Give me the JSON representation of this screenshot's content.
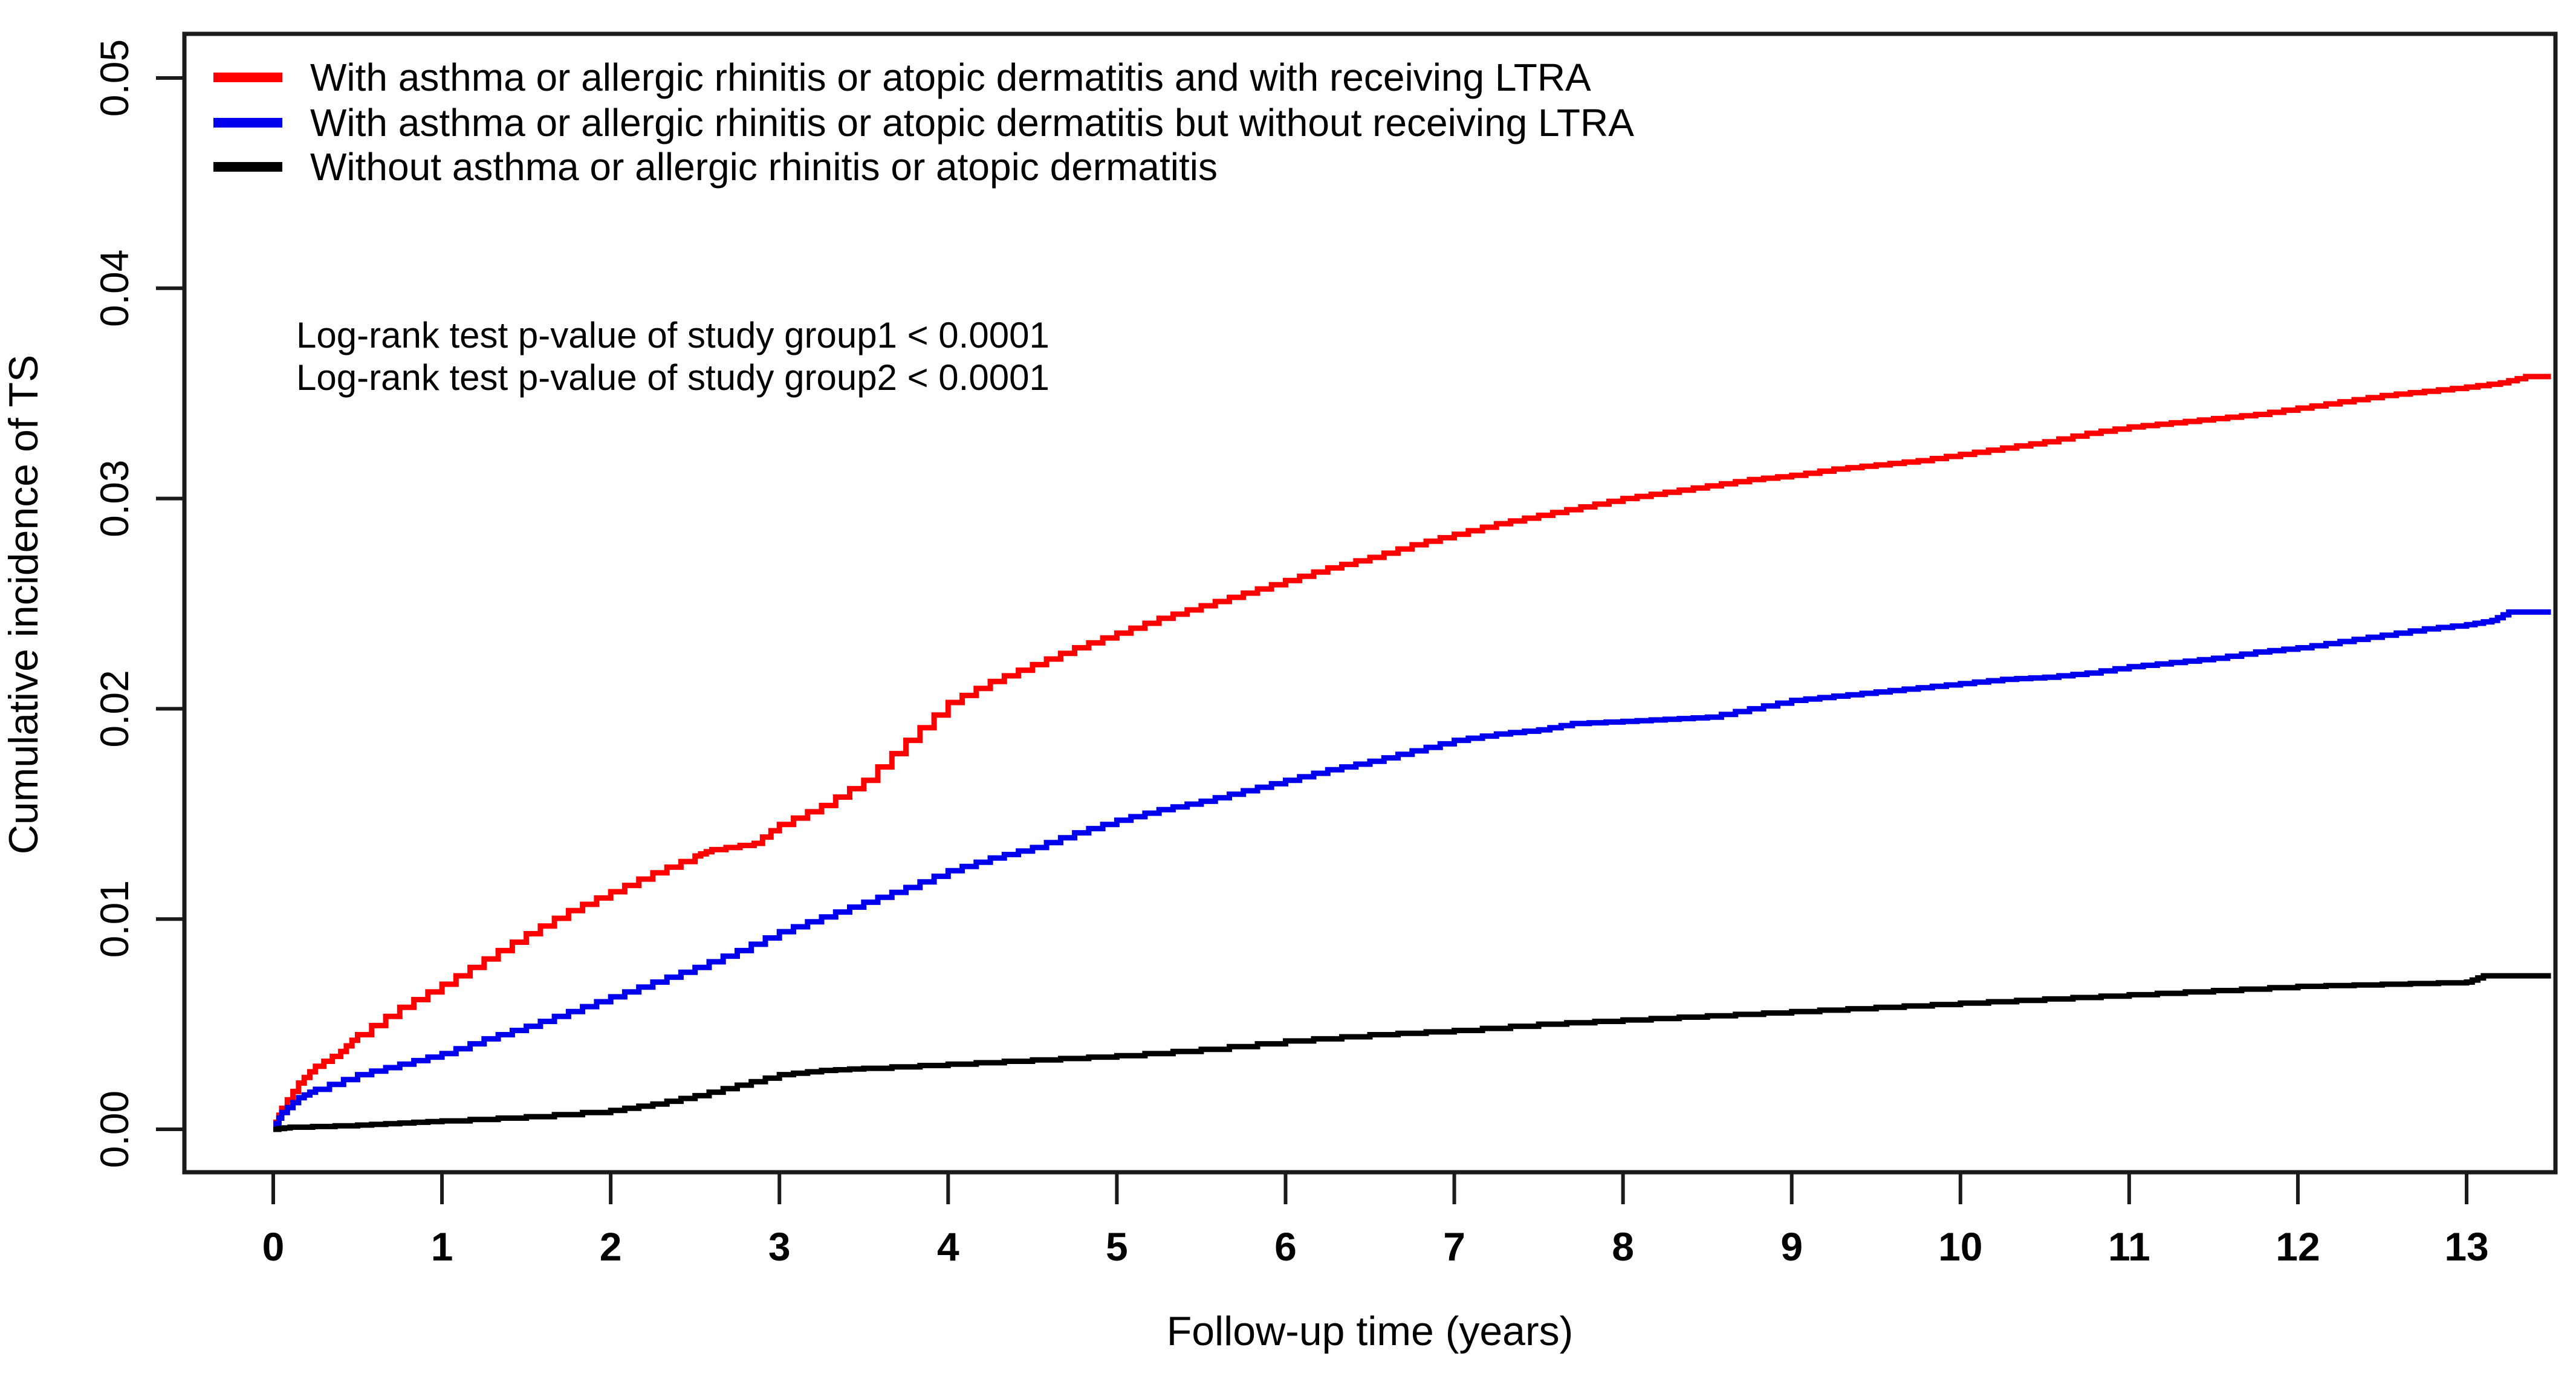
{
  "page": {
    "background": "#ffffff"
  },
  "chart_data": {
    "type": "line",
    "title": "",
    "xlabel": "Follow-up time (years)",
    "ylabel": "Cumulative incidence of TS",
    "xlim": [
      -0.53,
      13.53
    ],
    "ylim": [
      -0.002,
      0.0521
    ],
    "x_ticks": [
      0,
      1,
      2,
      3,
      4,
      5,
      6,
      7,
      8,
      9,
      10,
      11,
      12,
      13
    ],
    "y_ticks": [
      0,
      0.01,
      0.02,
      0.03,
      0.04,
      0.05
    ],
    "y_tick_labels": [
      "0.00",
      "0.01",
      "0.02",
      "0.03",
      "0.04",
      "0.05"
    ],
    "grid": false,
    "legend_position": "top-left",
    "axis_color": "#1a1a1a",
    "annotations": [
      "Log-rank test p-value of study group1 < 0.0001",
      "Log-rank test p-value of study group2 < 0.0001"
    ],
    "series": [
      {
        "name": "With asthma or allergic rhinitis or atopic dermatitis and with receiving LTRA",
        "color": "#ff0000",
        "x": [
          0,
          0.05,
          0.15,
          0.25,
          0.4,
          0.5,
          0.75,
          1,
          1.25,
          1.5,
          1.75,
          2,
          2.25,
          2.5,
          2.6,
          2.85,
          3,
          3.25,
          3.5,
          3.75,
          4,
          4.25,
          4.5,
          4.75,
          5,
          5.25,
          5.5,
          5.75,
          6,
          6.25,
          6.5,
          6.75,
          7,
          7.25,
          7.5,
          7.75,
          8,
          8.25,
          8.5,
          8.75,
          9,
          9.25,
          9.5,
          9.75,
          10,
          10.25,
          10.5,
          10.75,
          11,
          11.25,
          11.5,
          11.75,
          12,
          12.25,
          12.5,
          12.75,
          13,
          13.2,
          13.35,
          13.5
        ],
        "y": [
          0,
          0.001,
          0.0022,
          0.003,
          0.0037,
          0.0045,
          0.0058,
          0.0069,
          0.0081,
          0.0093,
          0.0104,
          0.0113,
          0.0122,
          0.013,
          0.0133,
          0.0136,
          0.0145,
          0.0154,
          0.0166,
          0.0185,
          0.0203,
          0.0213,
          0.0221,
          0.0229,
          0.0236,
          0.0243,
          0.0249,
          0.0255,
          0.0261,
          0.0267,
          0.0272,
          0.0278,
          0.0283,
          0.0288,
          0.0292,
          0.0296,
          0.03,
          0.0303,
          0.0306,
          0.0309,
          0.0311,
          0.0314,
          0.0316,
          0.0318,
          0.0321,
          0.0324,
          0.0327,
          0.0331,
          0.0334,
          0.0336,
          0.0338,
          0.034,
          0.0343,
          0.0346,
          0.0349,
          0.0351,
          0.0353,
          0.0355,
          0.0358,
          0.0358
        ]
      },
      {
        "name": "With asthma or allergic rhinitis or atopic dermatitis but without receiving LTRA",
        "color": "#0000ee",
        "x": [
          0,
          0.05,
          0.15,
          0.25,
          0.5,
          0.75,
          1,
          1.25,
          1.5,
          1.75,
          2,
          2.25,
          2.5,
          2.75,
          3,
          3.25,
          3.5,
          3.75,
          4,
          4.25,
          4.5,
          4.75,
          5,
          5.25,
          5.5,
          5.75,
          6,
          6.25,
          6.5,
          6.75,
          7,
          7.25,
          7.5,
          7.7,
          8,
          8.25,
          8.5,
          8.75,
          9,
          9.25,
          9.5,
          9.75,
          10,
          10.25,
          10.5,
          10.75,
          11,
          11.25,
          11.5,
          11.75,
          12,
          12.25,
          12.5,
          12.75,
          13,
          13.15,
          13.25,
          13.5
        ],
        "y": [
          0,
          0.0008,
          0.0015,
          0.0019,
          0.0026,
          0.0031,
          0.0036,
          0.0043,
          0.0049,
          0.0056,
          0.0063,
          0.007,
          0.0077,
          0.0085,
          0.0094,
          0.0101,
          0.0108,
          0.0115,
          0.0123,
          0.0129,
          0.0134,
          0.0141,
          0.0147,
          0.0152,
          0.0156,
          0.0161,
          0.0166,
          0.0171,
          0.0175,
          0.018,
          0.0185,
          0.0188,
          0.019,
          0.0193,
          0.0194,
          0.0195,
          0.0196,
          0.02,
          0.0204,
          0.0206,
          0.0208,
          0.021,
          0.0212,
          0.0214,
          0.0215,
          0.0217,
          0.022,
          0.0222,
          0.0224,
          0.0227,
          0.0229,
          0.0232,
          0.0235,
          0.0238,
          0.024,
          0.0242,
          0.0246,
          0.0246
        ]
      },
      {
        "name": "Without asthma or allergic rhinitis or atopic dermatitis",
        "color": "#000000",
        "x": [
          0,
          0.1,
          0.5,
          0.75,
          1,
          1.5,
          2,
          2.25,
          2.5,
          2.75,
          3,
          3.25,
          3.5,
          4,
          4.5,
          5,
          5.5,
          6,
          6.5,
          7,
          7.5,
          8,
          8.5,
          9,
          9.5,
          10,
          10.5,
          11,
          11.5,
          12,
          12.5,
          13,
          13.1,
          13.5
        ],
        "y": [
          0,
          0.0001,
          0.0002,
          0.0003,
          0.0004,
          0.0006,
          0.0009,
          0.0012,
          0.0016,
          0.0021,
          0.0026,
          0.0028,
          0.0029,
          0.0031,
          0.0033,
          0.0035,
          0.0038,
          0.0042,
          0.0045,
          0.0047,
          0.005,
          0.0052,
          0.0054,
          0.0056,
          0.0058,
          0.006,
          0.0062,
          0.0064,
          0.0066,
          0.0068,
          0.0069,
          0.007,
          0.0073,
          0.0073
        ]
      }
    ]
  }
}
